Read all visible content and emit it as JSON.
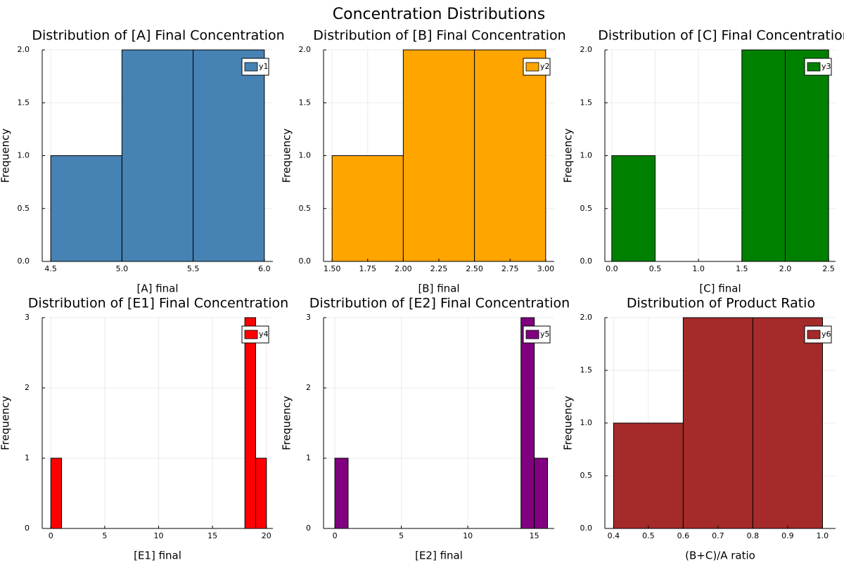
{
  "figure": {
    "suptitle": "Concentration Distributions"
  },
  "chart_data": [
    {
      "type": "bar",
      "histogram": true,
      "title": "Distribution of [A] Final Concentration",
      "xlabel": "[A] final",
      "ylabel": "Frequency",
      "series_name": "y1",
      "color": "#4682b4",
      "bin_edges": [
        4.5,
        5.0,
        5.5,
        6.0
      ],
      "values": [
        1,
        2,
        2
      ],
      "xlim": [
        4.44,
        6.06
      ],
      "ylim": [
        0,
        2
      ],
      "xticks": [
        4.5,
        5.0,
        5.5,
        6.0
      ],
      "xtick_labels": [
        "4.5",
        "5.0",
        "5.5",
        "6.0"
      ],
      "yticks": [
        0,
        0.5,
        1.0,
        1.5,
        2.0
      ],
      "ytick_labels": [
        "0.0",
        "0.5",
        "1.0",
        "1.5",
        "2.0"
      ],
      "grid": true,
      "legend": "top-right"
    },
    {
      "type": "bar",
      "histogram": true,
      "title": "Distribution of [B] Final Concentration",
      "xlabel": "[B] final",
      "ylabel": "Frequency",
      "series_name": "y2",
      "color": "#ffa500",
      "bin_edges": [
        1.5,
        2.0,
        2.5,
        3.0
      ],
      "values": [
        1,
        2,
        2
      ],
      "xlim": [
        1.44,
        3.06
      ],
      "ylim": [
        0,
        2
      ],
      "xticks": [
        1.5,
        1.75,
        2.0,
        2.25,
        2.5,
        2.75,
        3.0
      ],
      "xtick_labels": [
        "1.50",
        "1.75",
        "2.00",
        "2.25",
        "2.50",
        "2.75",
        "3.00"
      ],
      "yticks": [
        0,
        0.5,
        1.0,
        1.5,
        2.0
      ],
      "ytick_labels": [
        "0.0",
        "0.5",
        "1.0",
        "1.5",
        "2.0"
      ],
      "grid": true,
      "legend": "top-right"
    },
    {
      "type": "bar",
      "histogram": true,
      "title": "Distribution of [C] Final Concentration",
      "xlabel": "[C] final",
      "ylabel": "Frequency",
      "series_name": "y3",
      "color": "#008000",
      "bin_edges": [
        0.0,
        0.5,
        1.0,
        1.5,
        2.0,
        2.5
      ],
      "values": [
        1,
        0,
        0,
        2,
        2
      ],
      "xlim": [
        -0.08,
        2.58
      ],
      "ylim": [
        0,
        2
      ],
      "xticks": [
        0.0,
        0.5,
        1.0,
        1.5,
        2.0,
        2.5
      ],
      "xtick_labels": [
        "0.0",
        "0.5",
        "1.0",
        "1.5",
        "2.0",
        "2.5"
      ],
      "yticks": [
        0,
        0.5,
        1.0,
        1.5,
        2.0
      ],
      "ytick_labels": [
        "0.0",
        "0.5",
        "1.0",
        "1.5",
        "2.0"
      ],
      "grid": true,
      "legend": "top-right"
    },
    {
      "type": "bar",
      "histogram": true,
      "title": "Distribution of [E1] Final Concentration",
      "xlabel": "[E1] final",
      "ylabel": "Frequency",
      "series_name": "y4",
      "color": "#ff0000",
      "bin_edges": [
        0,
        1,
        2,
        3,
        4,
        5,
        6,
        7,
        8,
        9,
        10,
        11,
        12,
        13,
        14,
        15,
        16,
        17,
        18,
        19,
        20
      ],
      "values": [
        1,
        0,
        0,
        0,
        0,
        0,
        0,
        0,
        0,
        0,
        0,
        0,
        0,
        0,
        0,
        0,
        0,
        0,
        3,
        1
      ],
      "xlim": [
        -0.8,
        20.6
      ],
      "ylim": [
        0,
        3
      ],
      "xticks": [
        0,
        5,
        10,
        15,
        20
      ],
      "xtick_labels": [
        "0",
        "5",
        "10",
        "15",
        "20"
      ],
      "yticks": [
        0,
        1,
        2,
        3
      ],
      "ytick_labels": [
        "0",
        "1",
        "2",
        "3"
      ],
      "grid": true,
      "legend": "top-right"
    },
    {
      "type": "bar",
      "histogram": true,
      "title": "Distribution of [E2] Final Concentration",
      "xlabel": "[E2] final",
      "ylabel": "Frequency",
      "series_name": "y5",
      "color": "#800080",
      "bin_edges": [
        0,
        1,
        2,
        3,
        4,
        5,
        6,
        7,
        8,
        9,
        10,
        11,
        12,
        13,
        14,
        15,
        16
      ],
      "values": [
        1,
        0,
        0,
        0,
        0,
        0,
        0,
        0,
        0,
        0,
        0,
        0,
        0,
        0,
        3,
        1
      ],
      "xlim": [
        -0.85,
        16.5
      ],
      "ylim": [
        0,
        3
      ],
      "xticks": [
        0,
        5,
        10,
        15
      ],
      "xtick_labels": [
        "0",
        "5",
        "10",
        "15"
      ],
      "yticks": [
        0,
        1,
        2,
        3
      ],
      "ytick_labels": [
        "0",
        "1",
        "2",
        "3"
      ],
      "grid": true,
      "legend": "top-right"
    },
    {
      "type": "bar",
      "histogram": true,
      "title": "Distribution of Product Ratio",
      "xlabel": "(B+C)/A ratio",
      "ylabel": "Frequency",
      "series_name": "y6",
      "color": "#a52a2a",
      "bin_edges": [
        0.4,
        0.6,
        0.8,
        1.0
      ],
      "values": [
        1,
        2,
        2
      ],
      "xlim": [
        0.375,
        1.0375
      ],
      "ylim": [
        0,
        2
      ],
      "xticks": [
        0.4,
        0.5,
        0.6,
        0.7,
        0.8,
        0.9,
        1.0
      ],
      "xtick_labels": [
        "0.4",
        "0.5",
        "0.6",
        "0.7",
        "0.8",
        "0.9",
        "1.0"
      ],
      "yticks": [
        0,
        0.5,
        1.0,
        1.5,
        2.0
      ],
      "ytick_labels": [
        "0.0",
        "0.5",
        "1.0",
        "1.5",
        "2.0"
      ],
      "grid": true,
      "legend": "top-right"
    }
  ]
}
